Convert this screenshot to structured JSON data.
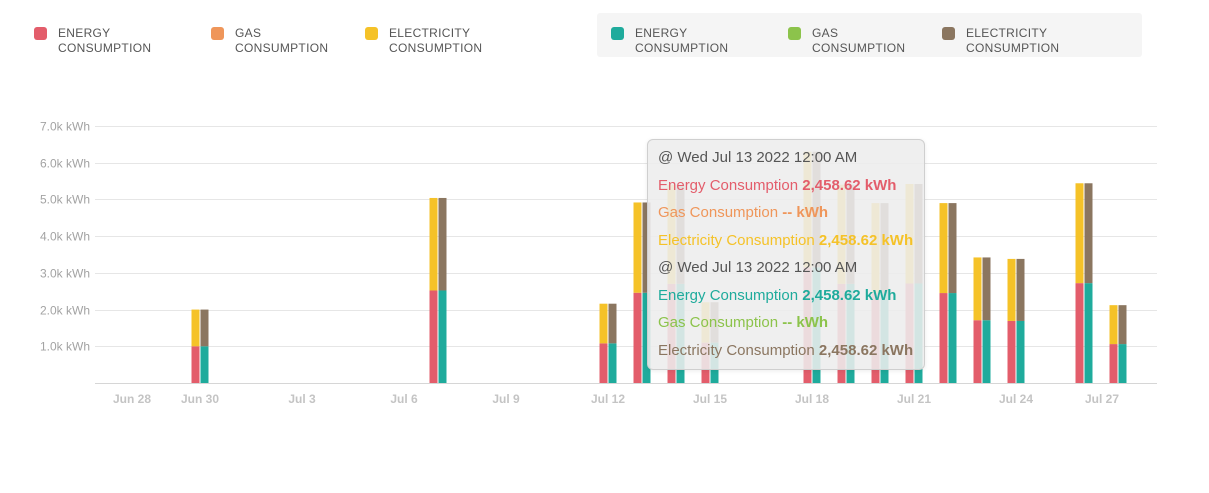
{
  "chart_data": {
    "type": "bar",
    "stacked": true,
    "legend": "top",
    "grid": true,
    "x": [
      "Jun 30",
      "Jul 7",
      "Jul 12",
      "Jul 13",
      "Jul 14",
      "Jul 15",
      "Jul 18",
      "Jul 19",
      "Jul 20",
      "Jul 21",
      "Jul 22",
      "Jul 23",
      "Jul 24",
      "Jul 26",
      "Jul 27"
    ],
    "x_ticks": [
      "Jun 28",
      "Jun 30",
      "Jul 3",
      "Jul 6",
      "Jul 9",
      "Jul 12",
      "Jul 15",
      "Jul 18",
      "Jul 21",
      "Jul 24",
      "Jul 27"
    ],
    "ylim": [
      0,
      7000
    ],
    "y_ticks": [
      {
        "value": 1000,
        "label": "1.0k kWh"
      },
      {
        "value": 2000,
        "label": "2.0k kWh"
      },
      {
        "value": 3000,
        "label": "3.0k kWh"
      },
      {
        "value": 4000,
        "label": "4.0k kWh"
      },
      {
        "value": 5000,
        "label": "5.0k kWh"
      },
      {
        "value": 6000,
        "label": "6.0k kWh"
      },
      {
        "value": 7000,
        "label": "7.0k kWh"
      }
    ],
    "groups": [
      {
        "series": [
          {
            "name": "ENERGY CONSUMPTION",
            "color": "#e35d6b",
            "values": [
              1000,
              2520,
              1080,
              2458.62,
              2700,
              1100,
              3150,
              2700,
              2450,
              2710,
              2450,
              1710,
              1690,
              2720,
              1060
            ]
          },
          {
            "name": "GAS CONSUMPTION",
            "color": "#ef965a",
            "values": [
              null,
              null,
              null,
              null,
              null,
              null,
              null,
              null,
              null,
              null,
              null,
              null,
              null,
              null,
              null
            ]
          },
          {
            "name": "ELECTRICITY CONSUMPTION",
            "color": "#f5c228",
            "values": [
              1000,
              2520,
              1080,
              2458.62,
              2700,
              1100,
              3150,
              2700,
              2450,
              2710,
              2450,
              1710,
              1690,
              2720,
              1060
            ]
          }
        ]
      },
      {
        "series": [
          {
            "name": "ENERGY CONSUMPTION",
            "color": "#1fab9c",
            "values": [
              1000,
              2520,
              1080,
              2458.62,
              2700,
              1100,
              3150,
              2700,
              2450,
              2710,
              2450,
              1710,
              1690,
              2720,
              1060
            ]
          },
          {
            "name": "GAS CONSUMPTION",
            "color": "#8cc34b",
            "values": [
              null,
              null,
              null,
              null,
              null,
              null,
              null,
              null,
              null,
              null,
              null,
              null,
              null,
              null,
              null
            ]
          },
          {
            "name": "ELECTRICITY CONSUMPTION",
            "color": "#8b7660",
            "values": [
              1000,
              2520,
              1080,
              2458.62,
              2700,
              1100,
              3150,
              2700,
              2450,
              2710,
              2450,
              1710,
              1690,
              2720,
              1060
            ]
          }
        ]
      }
    ]
  },
  "tooltip": {
    "sections": [
      {
        "header": "@ Wed Jul 13 2022 12:00 AM",
        "rows": [
          {
            "label": "Energy Consumption",
            "value": "2,458.62 kWh"
          },
          {
            "label": "Gas Consumption",
            "value": "-- kWh"
          },
          {
            "label": "Electricity Consumption",
            "value": "2,458.62 kWh"
          }
        ]
      },
      {
        "header": "@ Wed Jul 13 2022 12:00 AM",
        "rows": [
          {
            "label": "Energy Consumption",
            "value": "2,458.62 kWh"
          },
          {
            "label": "Gas Consumption",
            "value": "-- kWh"
          },
          {
            "label": "Electricity Consumption",
            "value": "2,458.62 kWh"
          }
        ]
      }
    ]
  }
}
